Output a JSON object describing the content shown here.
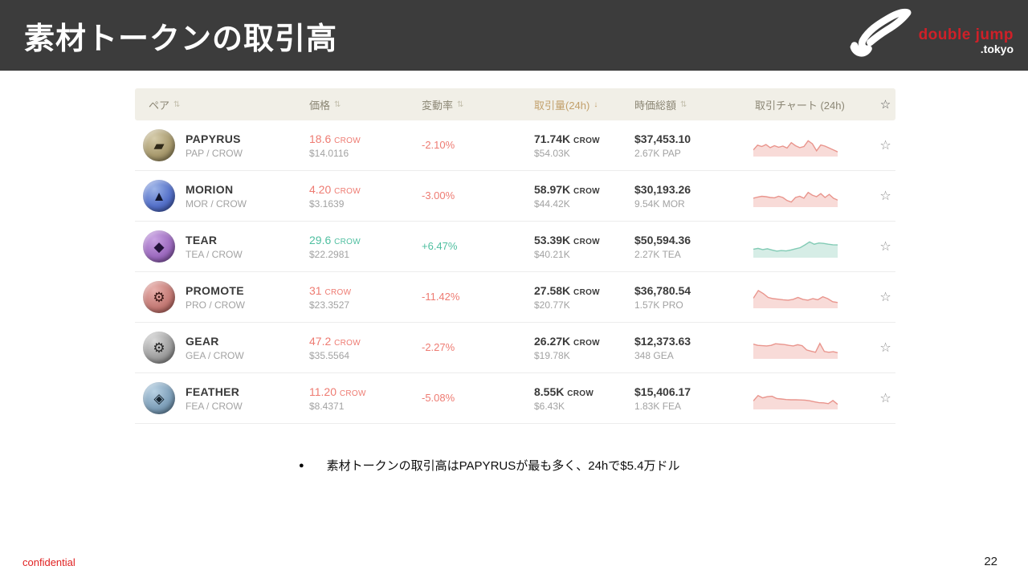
{
  "slide": {
    "title": "素材トークンの取引高",
    "bullet": "素材トークンの取引高はPAPYRUSが最も多く、24hで$5.4万ドル",
    "confidential": "confidential",
    "page_number": "22"
  },
  "logo": {
    "brand": "double jump",
    "tld": ".tokyo"
  },
  "icons": {
    "star": "☆",
    "bullet": "●"
  },
  "theme": {
    "header_bar": "#3c3c3c",
    "brand_red": "#cf2028",
    "table_header_bg": "#f1efe7",
    "active_sort": "#c2a06b",
    "up": "#4fbfa0",
    "down": "#ee7b72",
    "confidential_red": "#e02222",
    "spark": {
      "down": {
        "stroke": "#e9958d",
        "fill": "#f8dbd8"
      },
      "up": {
        "stroke": "#82cbb5",
        "fill": "#d6ede6"
      }
    }
  },
  "table": {
    "headers": [
      {
        "label": "ペア",
        "sort_glyph": "⇅",
        "active": false
      },
      {
        "label": "価格",
        "sort_glyph": "⇅",
        "active": false
      },
      {
        "label": "変動率",
        "sort_glyph": "⇅",
        "active": false
      },
      {
        "label": "取引量(24h)",
        "sort_glyph": "↓",
        "active": true
      },
      {
        "label": "時価総額",
        "sort_glyph": "⇅",
        "active": false
      },
      {
        "label": "取引チャート (24h)",
        "sort_glyph": "",
        "active": false
      },
      {
        "label": "☆",
        "sort_glyph": "",
        "active": false
      }
    ],
    "rows": [
      {
        "name": "PAPYRUS",
        "pair": "PAP / CROW",
        "price_crow": "18.6",
        "price_unit": "CROW",
        "price_usd": "$14.0116",
        "change": "-2.10%",
        "direction": "down",
        "volume_crow": "71.74K",
        "volume_unit": "CROW",
        "volume_usd": "$54.03K",
        "mcap": "$37,453.10",
        "supply": "2.67K PAP",
        "icon": {
          "glyph": "▰",
          "hi": "#d6ccab",
          "bg": "#a89a6e",
          "shadow": "#6e6340",
          "fg": "#2e2818"
        },
        "spark": [
          30,
          55,
          48,
          58,
          42,
          52,
          44,
          50,
          40,
          68,
          52,
          42,
          48,
          78,
          62,
          26,
          56,
          50,
          40,
          30,
          20
        ]
      },
      {
        "name": "MORION",
        "pair": "MOR / CROW",
        "price_crow": "4.20",
        "price_unit": "CROW",
        "price_usd": "$3.1639",
        "change": "-3.00%",
        "direction": "down",
        "volume_crow": "58.97K",
        "volume_unit": "CROW",
        "volume_usd": "$44.42K",
        "mcap": "$30,193.26",
        "supply": "9.54K MOR",
        "icon": {
          "glyph": "▲",
          "hi": "#9db4e8",
          "bg": "#5571c9",
          "shadow": "#2c3f85",
          "fg": "#10152e"
        },
        "spark": [
          42,
          48,
          52,
          50,
          46,
          44,
          52,
          46,
          30,
          22,
          46,
          52,
          42,
          72,
          58,
          50,
          66,
          46,
          62,
          42,
          32
        ]
      },
      {
        "name": "TEAR",
        "pair": "TEA / CROW",
        "price_crow": "29.6",
        "price_unit": "CROW",
        "price_usd": "$22.2981",
        "change": "+6.47%",
        "direction": "up",
        "volume_crow": "53.39K",
        "volume_unit": "CROW",
        "volume_usd": "$40.21K",
        "mcap": "$50,594.36",
        "supply": "2.27K TEA",
        "icon": {
          "glyph": "◆",
          "hi": "#c9a3e3",
          "bg": "#9d6bbf",
          "shadow": "#5f3a7d",
          "fg": "#23123a"
        },
        "spark": [
          40,
          44,
          38,
          42,
          36,
          30,
          33,
          31,
          36,
          42,
          48,
          62,
          78,
          66,
          72,
          70,
          66,
          63,
          62
        ]
      },
      {
        "name": "PROMOTE",
        "pair": "PRO / CROW",
        "price_crow": "31",
        "price_unit": "CROW",
        "price_usd": "$23.3527",
        "change": "-11.42%",
        "direction": "down",
        "volume_crow": "27.58K",
        "volume_unit": "CROW",
        "volume_usd": "$20.77K",
        "mcap": "$36,780.54",
        "supply": "1.57K PRO",
        "icon": {
          "glyph": "⚙",
          "hi": "#e8b0ac",
          "bg": "#c47b76",
          "shadow": "#8c4540",
          "fg": "#351310"
        },
        "spark": [
          48,
          88,
          72,
          52,
          46,
          43,
          40,
          38,
          42,
          52,
          42,
          38,
          46,
          40,
          56,
          46,
          30,
          26
        ]
      },
      {
        "name": "GEAR",
        "pair": "GEA / CROW",
        "price_crow": "47.2",
        "price_unit": "CROW",
        "price_usd": "$35.5564",
        "change": "-2.27%",
        "direction": "down",
        "volume_crow": "26.27K",
        "volume_unit": "CROW",
        "volume_usd": "$19.78K",
        "mcap": "$12,373.63",
        "supply": "348 GEA",
        "icon": {
          "glyph": "⚙",
          "hi": "#d9d9d9",
          "bg": "#9e9e9e",
          "shadow": "#5f5f5f",
          "fg": "#242424"
        },
        "spark": [
          72,
          66,
          64,
          63,
          66,
          74,
          72,
          70,
          66,
          63,
          69,
          64,
          42,
          36,
          30,
          76,
          34,
          30,
          33,
          28
        ]
      },
      {
        "name": "FEATHER",
        "pair": "FEA / CROW",
        "price_crow": "11.20",
        "price_unit": "CROW",
        "price_usd": "$8.4371",
        "change": "-5.08%",
        "direction": "down",
        "volume_crow": "8.55K",
        "volume_unit": "CROW",
        "volume_usd": "$6.43K",
        "mcap": "$15,406.17",
        "supply": "1.83K FEA",
        "icon": {
          "glyph": "◈",
          "hi": "#b9d2e4",
          "bg": "#7fa0ba",
          "shadow": "#46637a",
          "fg": "#16232e"
        },
        "spark": [
          40,
          68,
          56,
          62,
          64,
          52,
          50,
          47,
          46,
          46,
          45,
          44,
          41,
          36,
          31,
          30,
          26,
          42,
          22
        ]
      }
    ]
  }
}
